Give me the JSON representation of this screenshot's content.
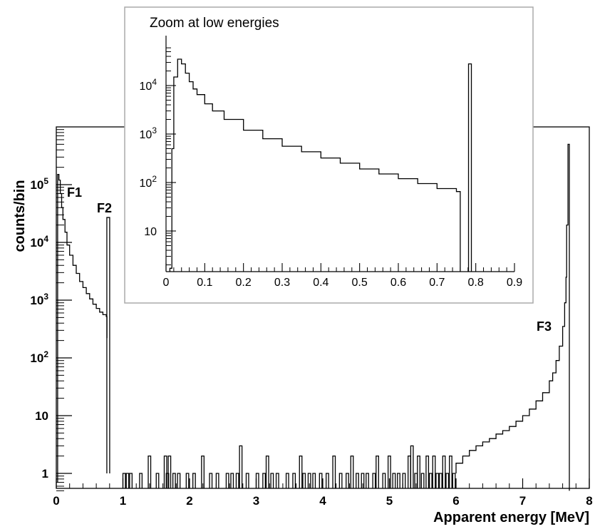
{
  "chart_data": [
    {
      "type": "histogram",
      "xlabel": "Apparent energy [MeV]",
      "ylabel": "counts/bin",
      "xlim": [
        0,
        8
      ],
      "ylim": [
        0.5,
        1000000
      ],
      "y_scale": "log",
      "x_ticks": [
        "0",
        "1",
        "2",
        "3",
        "4",
        "5",
        "6",
        "7",
        "8"
      ],
      "y_ticks": [
        {
          "value": 1,
          "label": "1"
        },
        {
          "value": 10,
          "label": "10"
        },
        {
          "value": 100,
          "label": "10",
          "exp": "2"
        },
        {
          "value": 1000,
          "label": "10",
          "exp": "3"
        },
        {
          "value": 10000,
          "label": "10",
          "exp": "4"
        },
        {
          "value": 100000,
          "label": "10",
          "exp": "5"
        }
      ],
      "annotations": [
        {
          "text": "F1",
          "x": 0.15,
          "y": 55000
        },
        {
          "text": "F2",
          "x": 0.58,
          "y": 20000
        },
        {
          "text": "F3",
          "x": 7.12,
          "y": 230
        }
      ],
      "continuum": [
        [
          0.02,
          150000
        ],
        [
          0.04,
          120000
        ],
        [
          0.06,
          70000
        ],
        [
          0.08,
          40000
        ],
        [
          0.1,
          25000
        ],
        [
          0.13,
          15000
        ],
        [
          0.16,
          9000
        ],
        [
          0.2,
          6000
        ],
        [
          0.25,
          4000
        ],
        [
          0.3,
          2900
        ],
        [
          0.35,
          2100
        ],
        [
          0.4,
          1650
        ],
        [
          0.45,
          1300
        ],
        [
          0.5,
          1050
        ],
        [
          0.55,
          850
        ],
        [
          0.6,
          720
        ],
        [
          0.65,
          620
        ],
        [
          0.7,
          560
        ],
        [
          0.75,
          520
        ],
        [
          0.76,
          220
        ]
      ],
      "f2_line": {
        "x": 0.78,
        "y": 27000
      },
      "sparse_counts": [
        [
          1.0,
          1
        ],
        [
          1.05,
          1
        ],
        [
          1.1,
          1
        ],
        [
          1.25,
          1
        ],
        [
          1.38,
          2
        ],
        [
          1.5,
          1
        ],
        [
          1.62,
          2
        ],
        [
          1.65,
          1
        ],
        [
          1.68,
          2
        ],
        [
          1.75,
          1
        ],
        [
          1.82,
          1
        ],
        [
          1.95,
          1
        ],
        [
          2.05,
          1
        ],
        [
          2.18,
          2
        ],
        [
          2.3,
          1
        ],
        [
          2.4,
          1
        ],
        [
          2.55,
          1
        ],
        [
          2.62,
          1
        ],
        [
          2.7,
          1
        ],
        [
          2.75,
          3
        ],
        [
          2.85,
          1
        ],
        [
          3.0,
          1
        ],
        [
          3.1,
          1
        ],
        [
          3.15,
          2
        ],
        [
          3.22,
          1
        ],
        [
          3.3,
          1
        ],
        [
          3.45,
          1
        ],
        [
          3.55,
          1
        ],
        [
          3.65,
          2
        ],
        [
          3.7,
          1
        ],
        [
          3.78,
          1
        ],
        [
          3.85,
          1
        ],
        [
          3.95,
          1
        ],
        [
          4.05,
          1
        ],
        [
          4.15,
          2
        ],
        [
          4.25,
          1
        ],
        [
          4.35,
          1
        ],
        [
          4.42,
          2
        ],
        [
          4.5,
          1
        ],
        [
          4.58,
          1
        ],
        [
          4.65,
          1
        ],
        [
          4.75,
          1
        ],
        [
          4.8,
          2
        ],
        [
          4.9,
          1
        ],
        [
          4.98,
          2
        ],
        [
          5.05,
          1
        ],
        [
          5.12,
          1
        ],
        [
          5.2,
          1
        ],
        [
          5.28,
          2
        ],
        [
          5.32,
          3
        ],
        [
          5.38,
          1
        ],
        [
          5.42,
          2
        ],
        [
          5.48,
          1
        ],
        [
          5.55,
          2
        ],
        [
          5.6,
          1
        ],
        [
          5.65,
          2
        ],
        [
          5.7,
          1
        ],
        [
          5.75,
          1
        ],
        [
          5.8,
          2
        ],
        [
          5.85,
          1
        ],
        [
          5.9,
          2
        ],
        [
          5.95,
          1
        ]
      ],
      "tail": [
        [
          6.0,
          1.5
        ],
        [
          6.1,
          2
        ],
        [
          6.2,
          2.5
        ],
        [
          6.3,
          3
        ],
        [
          6.4,
          3.5
        ],
        [
          6.5,
          4
        ],
        [
          6.6,
          4.8
        ],
        [
          6.7,
          5.5
        ],
        [
          6.8,
          6.5
        ],
        [
          6.9,
          8
        ],
        [
          7.0,
          10
        ],
        [
          7.1,
          13
        ],
        [
          7.2,
          18
        ],
        [
          7.3,
          25
        ],
        [
          7.4,
          40
        ],
        [
          7.45,
          55
        ],
        [
          7.5,
          90
        ],
        [
          7.55,
          160
        ],
        [
          7.6,
          350
        ],
        [
          7.63,
          900
        ],
        [
          7.65,
          2500
        ],
        [
          7.66,
          20000
        ],
        [
          7.68,
          500000
        ],
        [
          7.7,
          0.5
        ]
      ]
    },
    {
      "type": "histogram",
      "title": "Zoom at low energies",
      "xlim": [
        0,
        0.9
      ],
      "ylim": [
        1.6,
        60000
      ],
      "y_scale": "log",
      "x_ticks": [
        "0",
        "0.1",
        "0.2",
        "0.3",
        "0.4",
        "0.5",
        "0.6",
        "0.7",
        "0.8",
        "0.9"
      ],
      "y_ticks": [
        {
          "value": 10,
          "label": "10"
        },
        {
          "value": 100,
          "label": "10",
          "exp": "2"
        },
        {
          "value": 1000,
          "label": "10",
          "exp": "3"
        },
        {
          "value": 10000,
          "label": "10",
          "exp": "4"
        }
      ],
      "spectrum": [
        [
          0.01,
          1.7
        ],
        [
          0.015,
          500
        ],
        [
          0.02,
          15000
        ],
        [
          0.03,
          35000
        ],
        [
          0.04,
          28000
        ],
        [
          0.05,
          18000
        ],
        [
          0.06,
          12000
        ],
        [
          0.07,
          8500
        ],
        [
          0.08,
          6500
        ],
        [
          0.1,
          4200
        ],
        [
          0.12,
          3000
        ],
        [
          0.15,
          2000
        ],
        [
          0.2,
          1200
        ],
        [
          0.25,
          800
        ],
        [
          0.3,
          560
        ],
        [
          0.35,
          430
        ],
        [
          0.4,
          320
        ],
        [
          0.45,
          250
        ],
        [
          0.5,
          190
        ],
        [
          0.55,
          150
        ],
        [
          0.6,
          120
        ],
        [
          0.65,
          95
        ],
        [
          0.7,
          75
        ],
        [
          0.75,
          65
        ],
        [
          0.76,
          1.6
        ]
      ],
      "f2_line": {
        "x": 0.785,
        "y": 28000
      }
    }
  ]
}
